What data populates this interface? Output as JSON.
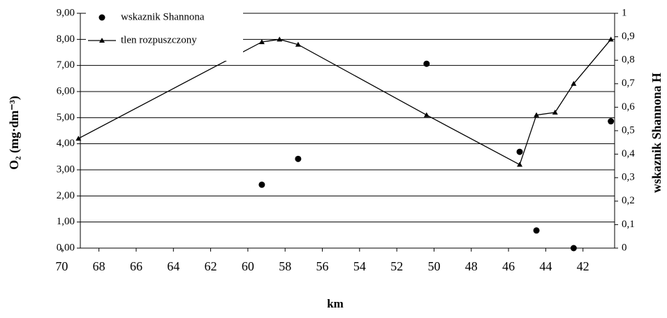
{
  "chart_data": {
    "type": "line",
    "x_label": "km",
    "y_label": "O₂ (mg·dm⁻³)",
    "y2_label": "wskaznik Shannona H",
    "xlim": [
      69.0,
      40.3
    ],
    "xticks": [
      70,
      68,
      66,
      64,
      62,
      60,
      58,
      56,
      54,
      52,
      50,
      48,
      46,
      44,
      42
    ],
    "ylim": [
      0,
      9
    ],
    "yticks": [
      {
        "value": 0,
        "label": "0,00"
      },
      {
        "value": 1,
        "label": "1,00"
      },
      {
        "value": 2,
        "label": "2,00"
      },
      {
        "value": 3,
        "label": "3,00"
      },
      {
        "value": 4,
        "label": "4,00"
      },
      {
        "value": 5,
        "label": "5,00"
      },
      {
        "value": 6,
        "label": "6,00"
      },
      {
        "value": 7,
        "label": "7,00"
      },
      {
        "value": 8,
        "label": "8,00"
      },
      {
        "value": 9,
        "label": "9,00"
      }
    ],
    "y2lim": [
      0,
      1
    ],
    "y2ticks": [
      0,
      {
        "value": 0.1,
        "label": "0,1"
      },
      {
        "value": 0.2,
        "label": "0,2"
      },
      {
        "value": 0.3,
        "label": "0,3"
      },
      {
        "value": 0.4,
        "label": "0,4"
      },
      {
        "value": 0.5,
        "label": "0,5"
      },
      {
        "value": 0.6,
        "label": "0,6"
      },
      {
        "value": 0.7,
        "label": "0,7"
      },
      {
        "value": 0.8,
        "label": "0,8"
      },
      {
        "value": 0.9,
        "label": "0,9"
      },
      1
    ],
    "grid": true,
    "legend": "upper left",
    "series": [
      {
        "name": "wskaznik Shannona",
        "color": "#000000",
        "marker": "circle",
        "line": false,
        "axis": "y2",
        "x": [
          59.25,
          57.3,
          50.4,
          45.4,
          44.5,
          42.5,
          40.5
        ],
        "values": [
          0.27,
          0.38,
          0.785,
          0.41,
          0.075,
          0,
          0.54
        ]
      },
      {
        "name": "tlen rozpuszczony",
        "color": "#000000",
        "marker": "triangle",
        "line": true,
        "x": [
          69.1,
          59.25,
          58.3,
          57.3,
          50.4,
          45.4,
          44.5,
          43.5,
          42.5,
          40.5
        ],
        "values": [
          4.2,
          7.9,
          8.0,
          7.8,
          5.1,
          3.2,
          5.1,
          5.2,
          6.3,
          8.0
        ]
      }
    ]
  }
}
